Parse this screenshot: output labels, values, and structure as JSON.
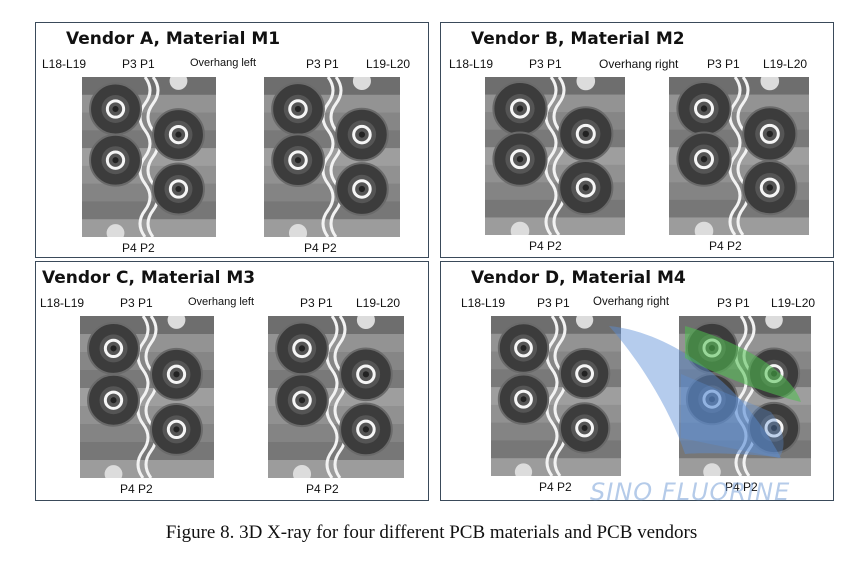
{
  "caption": "Figure 8. 3D X-ray for four different PCB materials and PCB vendors",
  "watermark": "SINO FLUORINE",
  "panels": [
    {
      "title": "Vendor A, Material M1",
      "left_layers": "L18-L19",
      "left_top": "P3 P1",
      "overhang": "Overhang left",
      "right_top": "P3 P1",
      "right_layers": "L19-L20",
      "left_bottom": "P4 P2",
      "right_bottom": "P4 P2"
    },
    {
      "title": "Vendor B, Material M2",
      "left_layers": "L18-L19",
      "left_top": "P3 P1",
      "overhang": "Overhang right",
      "right_top": "P3 P1",
      "right_layers": "L19-L20",
      "left_bottom": "P4 P2",
      "right_bottom": "P4 P2"
    },
    {
      "title": "Vendor C, Material M3",
      "left_layers": "L18-L19",
      "left_top": "P3 P1",
      "overhang": "Overhang left",
      "right_top": "P3 P1",
      "right_layers": "L19-L20",
      "left_bottom": "P4 P2",
      "right_bottom": "P4 P2"
    },
    {
      "title": "Vendor D, Material M4",
      "left_layers": "L18-L19",
      "left_top": "P3 P1",
      "overhang": "Overhang right",
      "right_top": "P3 P1",
      "right_layers": "L19-L20",
      "left_bottom": "P4 P2",
      "right_bottom": "P4 P2"
    }
  ],
  "colors": {
    "panel_border": "#3a4a5a",
    "highlight_blue": "#5b8fd6",
    "highlight_green": "#4fc04f"
  }
}
